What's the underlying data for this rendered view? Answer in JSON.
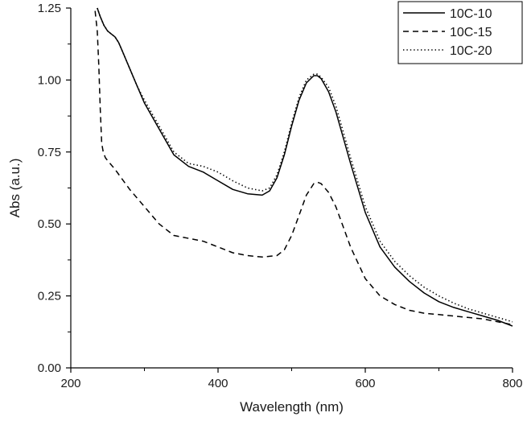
{
  "chart_data": {
    "type": "line",
    "title": "",
    "xlabel": "Wavelength (nm)",
    "ylabel": "Abs (a.u.)",
    "xlim": [
      200,
      800
    ],
    "ylim": [
      0.0,
      1.25
    ],
    "x_ticks": [
      200,
      400,
      600,
      800
    ],
    "x_tick_labels": [
      "200",
      "400",
      "600",
      "800"
    ],
    "x_minor_ticks": [
      300,
      500,
      700
    ],
    "y_ticks": [
      0.0,
      0.25,
      0.5,
      0.75,
      1.0,
      1.25
    ],
    "y_tick_labels": [
      "0.00",
      "0.25",
      "0.50",
      "0.75",
      "1.00",
      "1.25"
    ],
    "grid": false,
    "legend_position": "top-right",
    "series": [
      {
        "name": "10C-10",
        "line_style": "solid",
        "color": "#000000",
        "x": [
          236,
          240,
          245,
          250,
          255,
          260,
          265,
          270,
          280,
          290,
          300,
          320,
          340,
          360,
          380,
          400,
          420,
          440,
          460,
          470,
          480,
          490,
          500,
          510,
          520,
          530,
          535,
          540,
          550,
          560,
          570,
          580,
          600,
          620,
          640,
          660,
          680,
          700,
          720,
          740,
          760,
          780,
          800
        ],
        "y": [
          1.25,
          1.22,
          1.19,
          1.17,
          1.16,
          1.15,
          1.13,
          1.1,
          1.04,
          0.98,
          0.92,
          0.83,
          0.74,
          0.7,
          0.68,
          0.65,
          0.62,
          0.605,
          0.6,
          0.615,
          0.66,
          0.74,
          0.84,
          0.93,
          0.99,
          1.015,
          1.015,
          1.005,
          0.96,
          0.89,
          0.8,
          0.71,
          0.54,
          0.42,
          0.35,
          0.3,
          0.26,
          0.23,
          0.21,
          0.195,
          0.18,
          0.165,
          0.145
        ]
      },
      {
        "name": "10C-15",
        "line_style": "dashed",
        "color": "#000000",
        "x": [
          233,
          236,
          238,
          240,
          242,
          244,
          247,
          250,
          260,
          280,
          300,
          320,
          340,
          360,
          380,
          400,
          420,
          440,
          460,
          480,
          490,
          500,
          510,
          520,
          530,
          535,
          540,
          550,
          560,
          570,
          580,
          600,
          620,
          640,
          660,
          680,
          700,
          720,
          740,
          760,
          780,
          800
        ],
        "y": [
          1.24,
          1.17,
          1.05,
          0.9,
          0.78,
          0.75,
          0.73,
          0.72,
          0.69,
          0.62,
          0.56,
          0.5,
          0.46,
          0.45,
          0.44,
          0.42,
          0.4,
          0.39,
          0.385,
          0.39,
          0.41,
          0.46,
          0.53,
          0.6,
          0.64,
          0.645,
          0.64,
          0.61,
          0.56,
          0.49,
          0.42,
          0.31,
          0.25,
          0.22,
          0.2,
          0.19,
          0.185,
          0.18,
          0.175,
          0.17,
          0.16,
          0.15
        ]
      },
      {
        "name": "10C-20",
        "line_style": "dotted",
        "color": "#000000",
        "x": [
          236,
          240,
          245,
          250,
          255,
          260,
          265,
          270,
          280,
          290,
          300,
          320,
          340,
          360,
          380,
          400,
          420,
          440,
          460,
          470,
          480,
          490,
          500,
          510,
          520,
          530,
          535,
          540,
          550,
          560,
          570,
          580,
          600,
          620,
          640,
          660,
          680,
          700,
          720,
          740,
          760,
          780,
          800
        ],
        "y": [
          1.25,
          1.22,
          1.19,
          1.17,
          1.16,
          1.15,
          1.13,
          1.1,
          1.04,
          0.98,
          0.93,
          0.84,
          0.75,
          0.71,
          0.7,
          0.68,
          0.65,
          0.625,
          0.615,
          0.625,
          0.67,
          0.75,
          0.85,
          0.94,
          1.0,
          1.02,
          1.02,
          1.01,
          0.975,
          0.91,
          0.82,
          0.73,
          0.56,
          0.44,
          0.37,
          0.32,
          0.28,
          0.25,
          0.225,
          0.205,
          0.19,
          0.175,
          0.16
        ]
      }
    ]
  }
}
